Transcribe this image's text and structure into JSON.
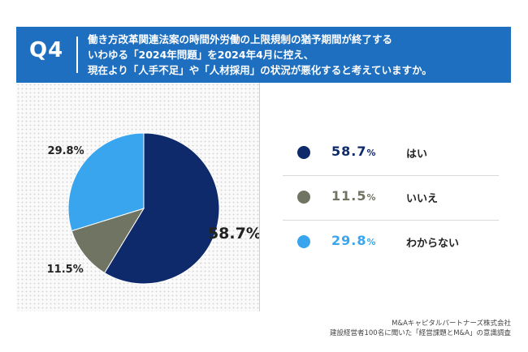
{
  "header": {
    "q_label": "Q4",
    "question_lines": [
      "働き方改革関連法案の時間外労働の上限規制の猶予期間が終了する",
      "いわゆる「2024年問題」を2024年4月に控え、",
      "現在より「人手不足」や「人材採用」の状況が悪化すると考えていますか。"
    ],
    "background_color": "#1f6fc0"
  },
  "chart_data": {
    "type": "pie",
    "unit": "%",
    "start_angle_deg": 0,
    "direction": "clockwise",
    "slices": [
      {
        "label": "はい",
        "value": 58.7,
        "display": "58.7%",
        "color": "#0f2a6b"
      },
      {
        "label": "いいえ",
        "value": 11.5,
        "display": "11.5%",
        "color": "#707463"
      },
      {
        "label": "わからない",
        "value": 29.8,
        "display": "29.8%",
        "color": "#3aa5ef"
      }
    ]
  },
  "legend": [
    {
      "pct": "58.7",
      "unit": "%",
      "label": "はい",
      "color": "#0f2a6b"
    },
    {
      "pct": "11.5",
      "unit": "%",
      "label": "いいえ",
      "color": "#707463"
    },
    {
      "pct": "29.8",
      "unit": "%",
      "label": "わからない",
      "color": "#3aa5ef"
    }
  ],
  "source": {
    "line1": "M&Aキャピタルパートナーズ株式会社",
    "line2": "建設経営者100名に聞いた「経営課題とM&A」の意識調査"
  }
}
